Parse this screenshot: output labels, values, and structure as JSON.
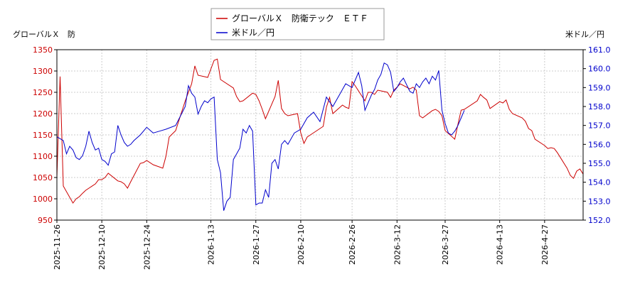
{
  "chart_data": {
    "type": "line",
    "y_left_label": "グローバルＸ　防",
    "y_right_label": "米ドル／円",
    "legend_position": "top-center",
    "grid": true,
    "left_axis": {
      "min": 950,
      "max": 1350,
      "ticks": [
        "950",
        "1000",
        "1050",
        "1100",
        "1150",
        "1200",
        "1250",
        "1300",
        "1350"
      ]
    },
    "right_axis": {
      "min": 152.0,
      "max": 161.0,
      "ticks": [
        "152.0",
        "153.0",
        "154.0",
        "155.0",
        "156.0",
        "157.0",
        "158.0",
        "159.0",
        "160.0",
        "161.0"
      ]
    },
    "x_range": [
      "2025-11-26",
      "2026-05-09"
    ],
    "x_ticks": [
      "2025-11-26",
      "2025-12-10",
      "2025-12-24",
      "2026-1-13",
      "2026-1-27",
      "2026-2-10",
      "2026-2-26",
      "2026-3-12",
      "2026-3-27",
      "2026-4-13",
      "2026-4-27"
    ],
    "colors": {
      "series1": "#cc0000",
      "series2": "#0000cc",
      "grid": "#cccccc",
      "axis": "#000000"
    },
    "series": [
      {
        "name": "グローバルＸ　防衛テック　ＥＴＦ",
        "axis": "left",
        "points": [
          [
            "2025-11-26",
            1050
          ],
          [
            "2025-11-27",
            1287
          ],
          [
            "2025-11-28",
            1030
          ],
          [
            "2025-12-01",
            990
          ],
          [
            "2025-12-02",
            1000
          ],
          [
            "2025-12-03",
            1005
          ],
          [
            "2025-12-04",
            1013
          ],
          [
            "2025-12-05",
            1020
          ],
          [
            "2025-12-08",
            1035
          ],
          [
            "2025-12-09",
            1045
          ],
          [
            "2025-12-10",
            1045
          ],
          [
            "2025-12-11",
            1050
          ],
          [
            "2025-12-12",
            1060
          ],
          [
            "2025-12-15",
            1042
          ],
          [
            "2025-12-16",
            1040
          ],
          [
            "2025-12-17",
            1035
          ],
          [
            "2025-12-18",
            1025
          ],
          [
            "2025-12-19",
            1040
          ],
          [
            "2025-12-22",
            1083
          ],
          [
            "2025-12-23",
            1085
          ],
          [
            "2025-12-24",
            1090
          ],
          [
            "2025-12-26",
            1080
          ],
          [
            "2025-12-29",
            1072
          ],
          [
            "2025-12-30",
            1100
          ],
          [
            "2025-12-31",
            1145
          ],
          [
            "2026-01-02",
            1160
          ],
          [
            "2026-01-05",
            1230
          ],
          [
            "2026-01-06",
            1250
          ],
          [
            "2026-01-07",
            1270
          ],
          [
            "2026-01-08",
            1312
          ],
          [
            "2026-01-09",
            1290
          ],
          [
            "2026-01-12",
            1285
          ],
          [
            "2026-01-13",
            1305
          ],
          [
            "2026-01-14",
            1325
          ],
          [
            "2026-01-15",
            1328
          ],
          [
            "2026-01-16",
            1280
          ],
          [
            "2026-01-20",
            1260
          ],
          [
            "2026-01-21",
            1240
          ],
          [
            "2026-01-22",
            1228
          ],
          [
            "2026-01-23",
            1230
          ],
          [
            "2026-01-26",
            1248
          ],
          [
            "2026-01-27",
            1245
          ],
          [
            "2026-01-28",
            1230
          ],
          [
            "2026-01-29",
            1210
          ],
          [
            "2026-01-30",
            1188
          ],
          [
            "2026-02-02",
            1240
          ],
          [
            "2026-02-03",
            1278
          ],
          [
            "2026-02-04",
            1212
          ],
          [
            "2026-02-05",
            1200
          ],
          [
            "2026-02-06",
            1195
          ],
          [
            "2026-02-09",
            1200
          ],
          [
            "2026-02-10",
            1155
          ],
          [
            "2026-02-11",
            1130
          ],
          [
            "2026-02-12",
            1145
          ],
          [
            "2026-02-13",
            1150
          ],
          [
            "2026-02-17",
            1170
          ],
          [
            "2026-02-18",
            1215
          ],
          [
            "2026-02-19",
            1238
          ],
          [
            "2026-02-20",
            1200
          ],
          [
            "2026-02-23",
            1220
          ],
          [
            "2026-02-24",
            1215
          ],
          [
            "2026-02-25",
            1212
          ],
          [
            "2026-02-26",
            1275
          ],
          [
            "2026-02-27",
            1265
          ],
          [
            "2026-03-02",
            1230
          ],
          [
            "2026-03-03",
            1250
          ],
          [
            "2026-03-04",
            1250
          ],
          [
            "2026-03-05",
            1245
          ],
          [
            "2026-03-06",
            1255
          ],
          [
            "2026-03-09",
            1250
          ],
          [
            "2026-03-10",
            1238
          ],
          [
            "2026-03-11",
            1255
          ],
          [
            "2026-03-12",
            1262
          ],
          [
            "2026-03-13",
            1270
          ],
          [
            "2026-03-16",
            1258
          ],
          [
            "2026-03-17",
            1262
          ],
          [
            "2026-03-18",
            1255
          ],
          [
            "2026-03-19",
            1195
          ],
          [
            "2026-03-20",
            1190
          ],
          [
            "2026-03-23",
            1207
          ],
          [
            "2026-03-24",
            1210
          ],
          [
            "2026-03-25",
            1205
          ],
          [
            "2026-03-26",
            1195
          ],
          [
            "2026-03-27",
            1160
          ],
          [
            "2026-03-30",
            1140
          ],
          [
            "2026-03-31",
            1175
          ],
          [
            "2026-04-01",
            1208
          ],
          [
            "2026-04-02",
            1210
          ],
          [
            "2026-04-06",
            1230
          ],
          [
            "2026-04-07",
            1245
          ],
          [
            "2026-04-08",
            1238
          ],
          [
            "2026-04-09",
            1232
          ],
          [
            "2026-04-10",
            1212
          ],
          [
            "2026-04-13",
            1228
          ],
          [
            "2026-04-14",
            1225
          ],
          [
            "2026-04-15",
            1232
          ],
          [
            "2026-04-16",
            1210
          ],
          [
            "2026-04-17",
            1200
          ],
          [
            "2026-04-20",
            1190
          ],
          [
            "2026-04-21",
            1182
          ],
          [
            "2026-04-22",
            1165
          ],
          [
            "2026-04-23",
            1160
          ],
          [
            "2026-04-24",
            1140
          ],
          [
            "2026-04-27",
            1125
          ],
          [
            "2026-04-28",
            1118
          ],
          [
            "2026-04-29",
            1120
          ],
          [
            "2026-04-30",
            1118
          ],
          [
            "2026-05-01",
            1108
          ],
          [
            "2026-05-04",
            1072
          ],
          [
            "2026-05-05",
            1055
          ],
          [
            "2026-05-06",
            1048
          ],
          [
            "2026-05-07",
            1065
          ],
          [
            "2026-05-08",
            1070
          ],
          [
            "2026-05-09",
            1058
          ]
        ]
      },
      {
        "name": "米ドル／円",
        "axis": "right",
        "points": [
          [
            "2025-11-26",
            156.4
          ],
          [
            "2025-11-27",
            156.3
          ],
          [
            "2025-11-28",
            156.2
          ],
          [
            "2025-11-29",
            155.5
          ],
          [
            "2025-11-30",
            155.9
          ],
          [
            "2025-12-01",
            155.7
          ],
          [
            "2025-12-02",
            155.3
          ],
          [
            "2025-12-03",
            155.2
          ],
          [
            "2025-12-04",
            155.4
          ],
          [
            "2025-12-05",
            155.9
          ],
          [
            "2025-12-06",
            156.7
          ],
          [
            "2025-12-07",
            156.1
          ],
          [
            "2025-12-08",
            155.7
          ],
          [
            "2025-12-09",
            155.8
          ],
          [
            "2025-12-10",
            155.2
          ],
          [
            "2025-12-11",
            155.1
          ],
          [
            "2025-12-12",
            154.9
          ],
          [
            "2025-12-13",
            155.5
          ],
          [
            "2025-12-14",
            155.6
          ],
          [
            "2025-12-15",
            157.0
          ],
          [
            "2025-12-16",
            156.5
          ],
          [
            "2025-12-17",
            156.1
          ],
          [
            "2025-12-18",
            155.9
          ],
          [
            "2025-12-19",
            156.0
          ],
          [
            "2025-12-20",
            156.2
          ],
          [
            "2025-12-22",
            156.5
          ],
          [
            "2025-12-24",
            156.9
          ],
          [
            "2025-12-26",
            156.6
          ],
          [
            "2025-12-28",
            156.7
          ],
          [
            "2025-12-30",
            156.8
          ],
          [
            "2026-01-02",
            157.0
          ],
          [
            "2026-01-05",
            158.0
          ],
          [
            "2026-01-06",
            159.1
          ],
          [
            "2026-01-07",
            158.7
          ],
          [
            "2026-01-08",
            158.5
          ],
          [
            "2026-01-09",
            157.6
          ],
          [
            "2026-01-10",
            158.0
          ],
          [
            "2026-01-11",
            158.3
          ],
          [
            "2026-01-12",
            158.2
          ],
          [
            "2026-01-13",
            158.4
          ],
          [
            "2026-01-14",
            158.5
          ],
          [
            "2026-01-15",
            155.2
          ],
          [
            "2026-01-16",
            154.5
          ],
          [
            "2026-01-17",
            152.5
          ],
          [
            "2026-01-18",
            153.0
          ],
          [
            "2026-01-19",
            153.2
          ],
          [
            "2026-01-20",
            155.2
          ],
          [
            "2026-01-21",
            155.5
          ],
          [
            "2026-01-22",
            155.8
          ],
          [
            "2026-01-23",
            156.8
          ],
          [
            "2026-01-24",
            156.6
          ],
          [
            "2026-01-25",
            157.0
          ],
          [
            "2026-01-26",
            156.7
          ],
          [
            "2026-01-27",
            152.8
          ],
          [
            "2026-01-28",
            152.9
          ],
          [
            "2026-01-29",
            152.9
          ],
          [
            "2026-01-30",
            153.6
          ],
          [
            "2026-01-31",
            153.2
          ],
          [
            "2026-02-01",
            155.0
          ],
          [
            "2026-02-02",
            155.2
          ],
          [
            "2026-02-03",
            154.7
          ],
          [
            "2026-02-04",
            156.0
          ],
          [
            "2026-02-05",
            156.2
          ],
          [
            "2026-02-06",
            156.0
          ],
          [
            "2026-02-08",
            156.6
          ],
          [
            "2026-02-10",
            156.8
          ],
          [
            "2026-02-12",
            157.4
          ],
          [
            "2026-02-14",
            157.7
          ],
          [
            "2026-02-16",
            157.2
          ],
          [
            "2026-02-18",
            158.5
          ],
          [
            "2026-02-20",
            158.0
          ],
          [
            "2026-02-22",
            158.6
          ],
          [
            "2026-02-24",
            159.2
          ],
          [
            "2026-02-26",
            159.0
          ],
          [
            "2026-02-28",
            159.8
          ],
          [
            "2026-03-01",
            159.1
          ],
          [
            "2026-03-02",
            157.8
          ],
          [
            "2026-03-03",
            158.2
          ],
          [
            "2026-03-04",
            158.6
          ],
          [
            "2026-03-05",
            158.9
          ],
          [
            "2026-03-06",
            159.4
          ],
          [
            "2026-03-07",
            159.7
          ],
          [
            "2026-03-08",
            160.3
          ],
          [
            "2026-03-09",
            160.2
          ],
          [
            "2026-03-10",
            159.8
          ],
          [
            "2026-03-11",
            158.8
          ],
          [
            "2026-03-12",
            159.0
          ],
          [
            "2026-03-13",
            159.3
          ],
          [
            "2026-03-14",
            159.5
          ],
          [
            "2026-03-16",
            158.8
          ],
          [
            "2026-03-17",
            158.7
          ],
          [
            "2026-03-18",
            159.2
          ],
          [
            "2026-03-19",
            159.0
          ],
          [
            "2026-03-20",
            159.3
          ],
          [
            "2026-03-21",
            159.5
          ],
          [
            "2026-03-22",
            159.2
          ],
          [
            "2026-03-23",
            159.6
          ],
          [
            "2026-03-24",
            159.4
          ],
          [
            "2026-03-25",
            159.9
          ],
          [
            "2026-03-26",
            157.8
          ],
          [
            "2026-03-27",
            157.1
          ],
          [
            "2026-03-28",
            156.6
          ],
          [
            "2026-03-29",
            156.5
          ],
          [
            "2026-03-30",
            156.7
          ],
          [
            "2026-03-31",
            157.0
          ],
          [
            "2026-04-01",
            157.4
          ],
          [
            "2026-04-02",
            157.8
          ]
        ]
      }
    ]
  }
}
